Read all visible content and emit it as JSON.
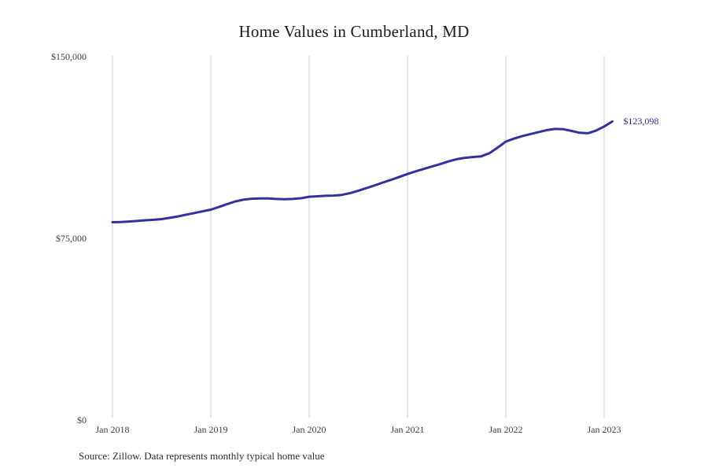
{
  "title": "Home Values in Cumberland, MD",
  "annotation": {
    "end_label": "$123,098"
  },
  "source_note": "Source: Zillow. Data represents monthly typical home value",
  "colors": {
    "line": "#34309d",
    "grid": "#cccccc",
    "axis_text": "#3d3d3d",
    "title_text": "#1c1c1c",
    "annotation_text": "#312e81",
    "background": "#ffffff"
  },
  "chart_data": {
    "type": "line",
    "title": "Home Values in Cumberland, MD",
    "start_month": "2018-01",
    "end_month": "2023-02",
    "monthly_values": [
      81500,
      81600,
      81800,
      82000,
      82300,
      82500,
      82800,
      83300,
      83900,
      84600,
      85300,
      86000,
      86700,
      87800,
      89000,
      90100,
      90800,
      91200,
      91300,
      91300,
      91100,
      91000,
      91100,
      91400,
      92000,
      92200,
      92400,
      92500,
      92800,
      93500,
      94500,
      95600,
      96700,
      97900,
      99000,
      100200,
      101400,
      102500,
      103500,
      104500,
      105500,
      106600,
      107500,
      108100,
      108400,
      108700,
      110000,
      112300,
      114800,
      116000,
      117000,
      117900,
      118700,
      119500,
      120000,
      119900,
      119200,
      118400,
      118200,
      119300,
      121000,
      123098
    ],
    "final_value": 123098,
    "x_ticks": [
      "Jan 2018",
      "Jan 2019",
      "Jan 2020",
      "Jan 2021",
      "Jan 2022",
      "Jan 2023"
    ],
    "y_ticks": [
      {
        "label": "$0",
        "value": 0
      },
      {
        "label": "$75,000",
        "value": 75000
      },
      {
        "label": "$150,000",
        "value": 150000
      }
    ],
    "ylim": [
      0,
      150000
    ],
    "grid": "vertical-at-year-ticks",
    "legend": "none"
  }
}
